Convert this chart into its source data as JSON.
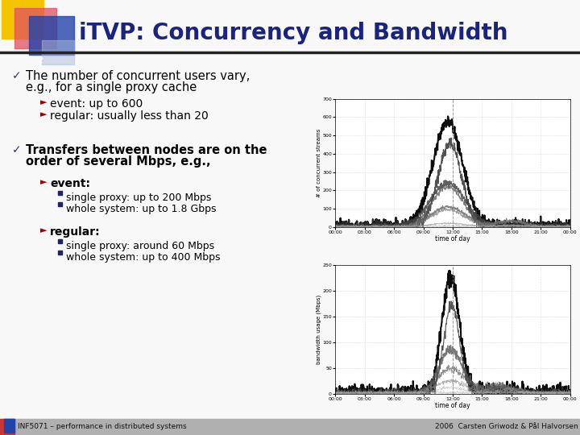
{
  "title": "iTVP: Concurrency and Bandwidth",
  "title_color": "#1a237e",
  "bg_color": "#ffffff",
  "footer_left": "INF5071 – performance in distributed systems",
  "footer_right": "2006  Carsten Griwodz & Pål Halvorsen",
  "accent_yellow": "#f5c400",
  "accent_red": "#e05060",
  "accent_blue": "#2244aa",
  "accent_blue_light": "#aabbdd",
  "title_underline_color": "#333333",
  "text_color": "#000000",
  "bullet_color": "#333366",
  "sub_bullet_color": "#990000",
  "footer_bg": "#b0b0b0",
  "slide_bg": "#f8f8f8",
  "chart_bg": "#ffffff",
  "grid_color": "#bbbbbb"
}
